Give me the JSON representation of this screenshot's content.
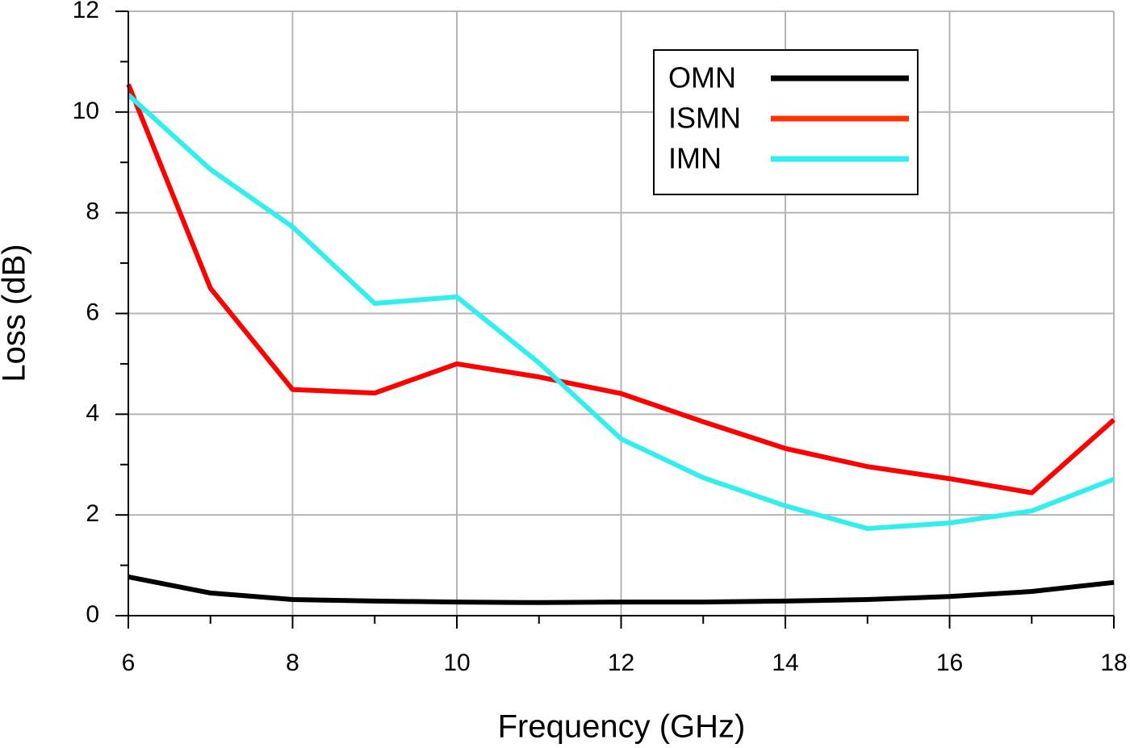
{
  "chart_data": {
    "type": "line",
    "x_label": "Frequency (GHz)",
    "y_label": "Loss (dB)",
    "x": [
      6,
      7,
      8,
      9,
      10,
      11,
      12,
      13,
      14,
      15,
      16,
      17,
      18
    ],
    "series": [
      {
        "name": "OMN",
        "color": "#000000",
        "values": [
          0.77,
          0.45,
          0.32,
          0.29,
          0.27,
          0.26,
          0.27,
          0.27,
          0.29,
          0.32,
          0.38,
          0.48,
          0.66
        ]
      },
      {
        "name": "ISMN",
        "color": "#ff0000",
        "legend_color": "#ff3300",
        "values": [
          10.55,
          6.5,
          4.49,
          4.42,
          5.0,
          4.74,
          4.41,
          3.85,
          3.32,
          2.96,
          2.72,
          2.44,
          3.89
        ]
      },
      {
        "name": "IMN",
        "color": "#33eeee",
        "values": [
          10.34,
          8.86,
          7.72,
          6.2,
          6.33,
          5.02,
          3.51,
          2.74,
          2.18,
          1.73,
          1.84,
          2.08,
          2.71
        ]
      }
    ],
    "xlim": [
      6,
      18
    ],
    "ylim": [
      0,
      12
    ],
    "xticks": [
      6,
      8,
      10,
      12,
      14,
      16,
      18
    ],
    "yticks": [
      0,
      2,
      4,
      6,
      8,
      10,
      12
    ],
    "xminorticks": [
      7,
      9,
      11,
      13,
      15,
      17
    ],
    "yminorticks": [
      1,
      3,
      5,
      7,
      9,
      11
    ],
    "grid": true,
    "legend": "upper right"
  }
}
